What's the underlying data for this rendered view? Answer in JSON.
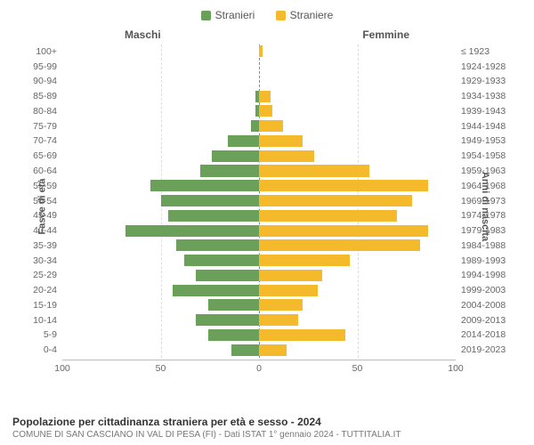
{
  "legend": {
    "male": {
      "label": "Stranieri",
      "color": "#6aa05a"
    },
    "female": {
      "label": "Straniere",
      "color": "#f5b92c"
    }
  },
  "column_titles": {
    "left": "Maschi",
    "right": "Femmine"
  },
  "axis_titles": {
    "left": "Fasce di età",
    "right": "Anni di nascita"
  },
  "x_axis": {
    "min": 0,
    "max": 100,
    "ticks": [
      100,
      50,
      0,
      50,
      100
    ]
  },
  "grid_color": "#dddddd",
  "midline_color": "#888888",
  "bg": "#ffffff",
  "bar_colors": {
    "male": "#6aa05a",
    "female": "#f5b92c"
  },
  "rows": [
    {
      "age": "100+",
      "birth": "≤ 1923",
      "m": 0,
      "f": 2
    },
    {
      "age": "95-99",
      "birth": "1924-1928",
      "m": 0,
      "f": 0
    },
    {
      "age": "90-94",
      "birth": "1929-1933",
      "m": 0,
      "f": 0
    },
    {
      "age": "85-89",
      "birth": "1934-1938",
      "m": 2,
      "f": 6
    },
    {
      "age": "80-84",
      "birth": "1939-1943",
      "m": 2,
      "f": 7
    },
    {
      "age": "75-79",
      "birth": "1944-1948",
      "m": 4,
      "f": 12
    },
    {
      "age": "70-74",
      "birth": "1949-1953",
      "m": 16,
      "f": 22
    },
    {
      "age": "65-69",
      "birth": "1954-1958",
      "m": 24,
      "f": 28
    },
    {
      "age": "60-64",
      "birth": "1959-1963",
      "m": 30,
      "f": 56
    },
    {
      "age": "55-59",
      "birth": "1964-1968",
      "m": 55,
      "f": 86
    },
    {
      "age": "50-54",
      "birth": "1969-1973",
      "m": 50,
      "f": 78
    },
    {
      "age": "45-49",
      "birth": "1974-1978",
      "m": 46,
      "f": 70
    },
    {
      "age": "40-44",
      "birth": "1979-1983",
      "m": 68,
      "f": 86
    },
    {
      "age": "35-39",
      "birth": "1984-1988",
      "m": 42,
      "f": 82
    },
    {
      "age": "30-34",
      "birth": "1989-1993",
      "m": 38,
      "f": 46
    },
    {
      "age": "25-29",
      "birth": "1994-1998",
      "m": 32,
      "f": 32
    },
    {
      "age": "20-24",
      "birth": "1999-2003",
      "m": 44,
      "f": 30
    },
    {
      "age": "15-19",
      "birth": "2004-2008",
      "m": 26,
      "f": 22
    },
    {
      "age": "10-14",
      "birth": "2009-2013",
      "m": 32,
      "f": 20
    },
    {
      "age": "5-9",
      "birth": "2014-2018",
      "m": 26,
      "f": 44
    },
    {
      "age": "0-4",
      "birth": "2019-2023",
      "m": 14,
      "f": 14
    }
  ],
  "footer": {
    "title": "Popolazione per cittadinanza straniera per età e sesso - 2024",
    "sub": "COMUNE DI SAN CASCIANO IN VAL DI PESA (FI) - Dati ISTAT 1° gennaio 2024 - TUTTITALIA.IT"
  }
}
